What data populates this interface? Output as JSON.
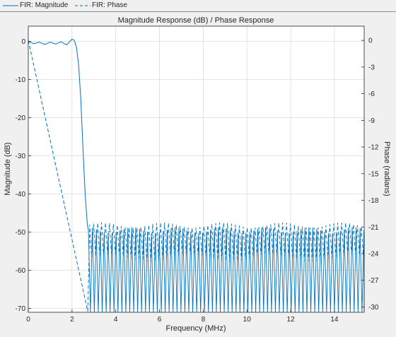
{
  "legend": {
    "items": [
      {
        "label": "FIR: Magnitude",
        "style": "solid",
        "color": "#0072bd"
      },
      {
        "label": "FIR: Phase",
        "style": "dashed",
        "color": "#0072bd"
      }
    ]
  },
  "chart_data": {
    "type": "line",
    "title": "Magnitude Response (dB) / Phase Response",
    "xlabel": "Frequency (MHz)",
    "ylabel_left": "Magnitude (dB)",
    "ylabel_right": "Phase (radians)",
    "xlim": [
      0,
      15.36
    ],
    "ylim_left": [
      -71,
      4
    ],
    "ylim_right": [
      -30.6,
      1.6
    ],
    "xticks": [
      0,
      2,
      4,
      6,
      8,
      10,
      12,
      14
    ],
    "yticks_left": [
      0,
      -10,
      -20,
      -30,
      -40,
      -50,
      -60,
      -70
    ],
    "yticks_right": [
      0,
      -3,
      -6,
      -9,
      -12,
      -15,
      -18,
      -21,
      -24,
      -27,
      -30
    ],
    "grid": true,
    "legend_position": "top-left",
    "series": [
      {
        "name": "FIR: Magnitude",
        "axis": "left",
        "style": "solid",
        "color": "#0072bd",
        "passband_edge_mhz": 2.2,
        "stopband_edge_mhz": 2.75,
        "passband_ripple_db": 0.8,
        "stopband_level_db": -49.5,
        "stopband_null_floor_db": -71,
        "x": [
          0,
          0.25,
          0.5,
          0.75,
          1.0,
          1.25,
          1.5,
          1.75,
          2.0,
          2.1,
          2.2,
          2.3,
          2.4,
          2.5,
          2.6,
          2.7,
          2.75
        ],
        "values": [
          0,
          -0.6,
          -0.2,
          -0.8,
          -0.2,
          -0.7,
          -0.1,
          -0.9,
          0.6,
          0.3,
          -1.5,
          -6,
          -15,
          -28,
          -40,
          -48,
          -49.5
        ]
      },
      {
        "name": "FIR: Phase",
        "axis": "right",
        "style": "dashed",
        "color": "#0072bd",
        "x": [
          0,
          2.72
        ],
        "values": [
          0,
          -30.5
        ],
        "stopband_min": -24.5,
        "stopband_max": -20.8
      }
    ]
  }
}
